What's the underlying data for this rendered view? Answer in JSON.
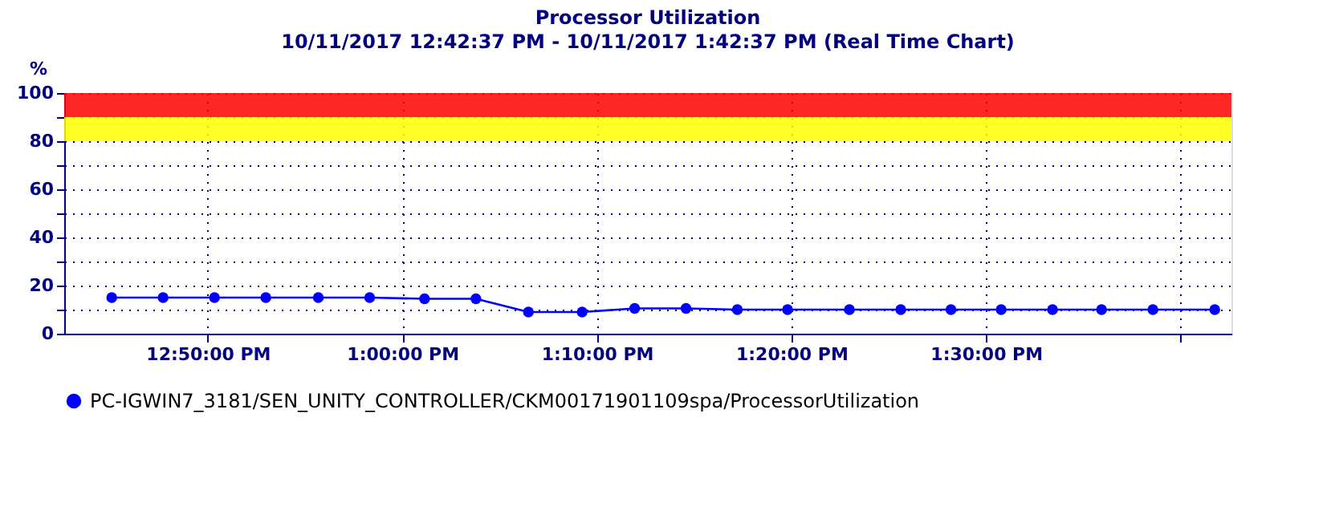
{
  "chart_data": {
    "type": "line",
    "title": "Processor Utilization",
    "subtitle": "10/11/2017 12:42:37 PM - 10/11/2017 1:42:37 PM (Real Time Chart)",
    "ylabel": "%",
    "x": [
      12.751,
      12.795,
      12.839,
      12.883,
      12.928,
      12.972,
      13.019,
      13.063,
      13.108,
      13.154,
      13.199,
      13.243,
      13.287,
      13.33,
      13.383,
      13.427,
      13.47,
      13.513,
      13.557,
      13.599,
      13.643,
      13.696
    ],
    "series": [
      {
        "name": "PC-IGWIN7_3181/SEN_UNITY_CONTROLLER/CKM00171901109spa/ProcessorUtilization",
        "color": "#0000ff",
        "values": [
          15,
          15,
          15,
          15,
          15,
          15,
          14.5,
          14.5,
          9,
          9,
          10.5,
          10.5,
          10,
          10,
          10,
          10,
          10,
          10,
          10,
          10,
          10,
          10
        ]
      }
    ],
    "xlim": [
      12.7103,
      13.7103
    ],
    "xticks": [
      {
        "value": 12.833333,
        "label": "12:50:00 PM"
      },
      {
        "value": 13.0,
        "label": "1:00:00 PM"
      },
      {
        "value": 13.166667,
        "label": "1:10:00 PM"
      },
      {
        "value": 13.333333,
        "label": "1:20:00 PM"
      },
      {
        "value": 13.5,
        "label": "1:30:00 PM"
      },
      {
        "value": 13.666667,
        "label": null
      }
    ],
    "ylim": [
      0,
      100
    ],
    "yticks": [
      0,
      {
        "value": 10,
        "label": null
      },
      20,
      {
        "value": 30,
        "label": null
      },
      40,
      {
        "value": 50,
        "label": null
      },
      60,
      {
        "value": 70,
        "label": null
      },
      80,
      {
        "value": 90,
        "label": null
      },
      100
    ],
    "bands": [
      {
        "axis": "y",
        "from": 90,
        "to": 100,
        "color": "#ff0000"
      },
      {
        "axis": "y",
        "from": 80,
        "to": 90,
        "color": "#ffff00"
      }
    ],
    "grid": true,
    "legend": "bottom",
    "marker": "circle",
    "line_style": "solid"
  }
}
